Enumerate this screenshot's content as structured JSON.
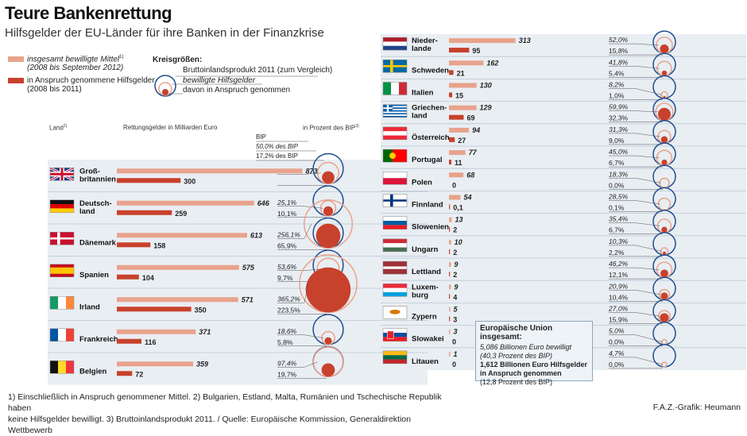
{
  "title": "Teure Bankenrettung",
  "subtitle": "Hilfsgelder der EU-Länder für ihre Banken in der Finanzkrise",
  "legend": {
    "approved_label": "insgesamt bewilligte Mittel",
    "approved_sup": "1)",
    "approved_period": "(2008 bis September 2012)",
    "used_label": "in Anspruch genommene Hilfsgelder",
    "used_period": "(2008 bis 2011)",
    "circles_title": "Kreisgrößen:",
    "circle_gdp": "Bruttoinlandsprodukt 2011 (zum Vergleich)",
    "circle_approved": "bewilligte Hilfsgelder",
    "circle_used": "davon in Anspruch genommen"
  },
  "headers": {
    "land": "Land",
    "land_sup": "2)",
    "money": "Rettungsgelder in Milliarden Euro",
    "percent": "in Prozent des BIP",
    "percent_sup": "3)"
  },
  "example_labels": {
    "bip": "BIP",
    "approved": "50,0% des BIP",
    "used": "17,2% des BIP"
  },
  "eu_box": {
    "heading": "Europäische Union insgesamt:",
    "line1": "5,086 Billionen Euro bewilligt",
    "line2": "(40,3 Prozent des BIP)",
    "line3": "1,612 Billionen Euro Hilfsgelder",
    "line4": "in Anspruch genommen",
    "line5": "(12,8 Prozent des BIP)"
  },
  "footnote_line1": "1) Einschließlich in Anspruch genommener Mittel.  2) Bulgarien, Estland, Malta, Rumänien und Tschechische Republik haben",
  "footnote_line2": "keine Hilfsgelder bewilligt.  3) Bruttoinlandsprodukt 2011. / Quelle: Europäische Kommission, Generaldirektion Wettbewerb",
  "credit": "F.A.Z.-Grafik: Heumann",
  "colors": {
    "approved": "#e8a38c",
    "used": "#c8412c",
    "gdp_circle": "#1f4e8c",
    "row_shade": "#e9eef3",
    "divider": "#b9c7d4"
  },
  "chart_data": {
    "type": "bar",
    "unit": "Milliarden Euro",
    "series": [
      {
        "name": "insgesamt bewilligte Mittel",
        "key": "approved"
      },
      {
        "name": "in Anspruch genommene Hilfsgelder",
        "key": "used"
      }
    ],
    "countries": [
      {
        "name": "Groß-\nbritannien",
        "flag": "gb",
        "approved": "873",
        "used": "300",
        "pct_approved": "",
        "pct_used": "",
        "approved_v": 873,
        "used_v": 300,
        "pa": 50.0,
        "pu": 17.2
      },
      {
        "name": "Deutsch-\nland",
        "flag": "de",
        "approved": "646",
        "used": "259",
        "pct_approved": "25,1%",
        "pct_used": "10,1%",
        "approved_v": 646,
        "used_v": 259,
        "pa": 25.1,
        "pu": 10.1
      },
      {
        "name": "Dänemark",
        "flag": "dk",
        "approved": "613",
        "used": "158",
        "pct_approved": "256,1%",
        "pct_used": "65,9%",
        "approved_v": 613,
        "used_v": 158,
        "pa": 256.1,
        "pu": 65.9
      },
      {
        "name": "Spanien",
        "flag": "es",
        "approved": "575",
        "used": "104",
        "pct_approved": "53,6%",
        "pct_used": "9,7%",
        "approved_v": 575,
        "used_v": 104,
        "pa": 53.6,
        "pu": 9.7
      },
      {
        "name": "Irland",
        "flag": "ie",
        "approved": "571",
        "used": "350",
        "pct_approved": "365,2%",
        "pct_used": "223,5%",
        "approved_v": 571,
        "used_v": 350,
        "pa": 365.2,
        "pu": 223.5
      },
      {
        "name": "Frankreich",
        "flag": "fr",
        "approved": "371",
        "used": "116",
        "pct_approved": "18,6%",
        "pct_used": "5,8%",
        "approved_v": 371,
        "used_v": 116,
        "pa": 18.6,
        "pu": 5.8
      },
      {
        "name": "Belgien",
        "flag": "be",
        "approved": "359",
        "used": "72",
        "pct_approved": "97,4%",
        "pct_used": "19,7%",
        "approved_v": 359,
        "used_v": 72,
        "pa": 97.4,
        "pu": 19.7
      },
      {
        "name": "Nieder-\nlande",
        "flag": "nl",
        "approved": "313",
        "used": "95",
        "pct_approved": "52,0%",
        "pct_used": "15,8%",
        "approved_v": 313,
        "used_v": 95,
        "pa": 52.0,
        "pu": 15.8
      },
      {
        "name": "Schweden",
        "flag": "se",
        "approved": "162",
        "used": "21",
        "pct_approved": "41,8%",
        "pct_used": "5,4%",
        "approved_v": 162,
        "used_v": 21,
        "pa": 41.8,
        "pu": 5.4
      },
      {
        "name": "Italien",
        "flag": "it",
        "approved": "130",
        "used": "15",
        "pct_approved": "8,2%",
        "pct_used": "1,0%",
        "approved_v": 130,
        "used_v": 15,
        "pa": 8.2,
        "pu": 1.0
      },
      {
        "name": "Griechen-\nland",
        "flag": "gr",
        "approved": "129",
        "used": "69",
        "pct_approved": "59,9%",
        "pct_used": "32,3%",
        "approved_v": 129,
        "used_v": 69,
        "pa": 59.9,
        "pu": 32.3
      },
      {
        "name": "Österreich",
        "flag": "at",
        "approved": "94",
        "used": "27",
        "pct_approved": "31,3%",
        "pct_used": "9,0%",
        "approved_v": 94,
        "used_v": 27,
        "pa": 31.3,
        "pu": 9.0
      },
      {
        "name": "Portugal",
        "flag": "pt",
        "approved": "77",
        "used": "11",
        "pct_approved": "45,0%",
        "pct_used": "6,7%",
        "approved_v": 77,
        "used_v": 11,
        "pa": 45.0,
        "pu": 6.7
      },
      {
        "name": "Polen",
        "flag": "pl",
        "approved": "68",
        "used": "0",
        "pct_approved": "18,3%",
        "pct_used": "0,0%",
        "approved_v": 68,
        "used_v": 0,
        "pa": 18.3,
        "pu": 0.0
      },
      {
        "name": "Finnland",
        "flag": "fi",
        "approved": "54",
        "used": "0,1",
        "pct_approved": "28,5%",
        "pct_used": "0,1%",
        "approved_v": 54,
        "used_v": 0.1,
        "pa": 28.5,
        "pu": 0.1
      },
      {
        "name": "Slowenien",
        "flag": "si",
        "approved": "13",
        "used": "2",
        "pct_approved": "35,4%",
        "pct_used": "6,7%",
        "approved_v": 13,
        "used_v": 2,
        "pa": 35.4,
        "pu": 6.7
      },
      {
        "name": "Ungarn",
        "flag": "hu",
        "approved": "10",
        "used": "2",
        "pct_approved": "10,3%",
        "pct_used": "2,2%",
        "approved_v": 10,
        "used_v": 2,
        "pa": 10.3,
        "pu": 2.2
      },
      {
        "name": "Lettland",
        "flag": "lv",
        "approved": "9",
        "used": "2",
        "pct_approved": "46,2%",
        "pct_used": "12,1%",
        "approved_v": 9,
        "used_v": 2,
        "pa": 46.2,
        "pu": 12.1
      },
      {
        "name": "Luxem-\nburg",
        "flag": "lu",
        "approved": "9",
        "used": "4",
        "pct_approved": "20,9%",
        "pct_used": "10,4%",
        "approved_v": 9,
        "used_v": 4,
        "pa": 20.9,
        "pu": 10.4
      },
      {
        "name": "Zypern",
        "flag": "cy",
        "approved": "5",
        "used": "3",
        "pct_approved": "27,0%",
        "pct_used": "15,9%",
        "approved_v": 5,
        "used_v": 3,
        "pa": 27.0,
        "pu": 15.9
      },
      {
        "name": "Slowakei",
        "flag": "sk",
        "approved": "3",
        "used": "0",
        "pct_approved": "5,0%",
        "pct_used": "0,0%",
        "approved_v": 3,
        "used_v": 0,
        "pa": 5.0,
        "pu": 0.0
      },
      {
        "name": "Litauen",
        "flag": "lt",
        "approved": "1",
        "used": "0",
        "pct_approved": "4,7%",
        "pct_used": "0,0%",
        "approved_v": 1,
        "used_v": 0,
        "pa": 4.7,
        "pu": 0.0
      }
    ]
  }
}
